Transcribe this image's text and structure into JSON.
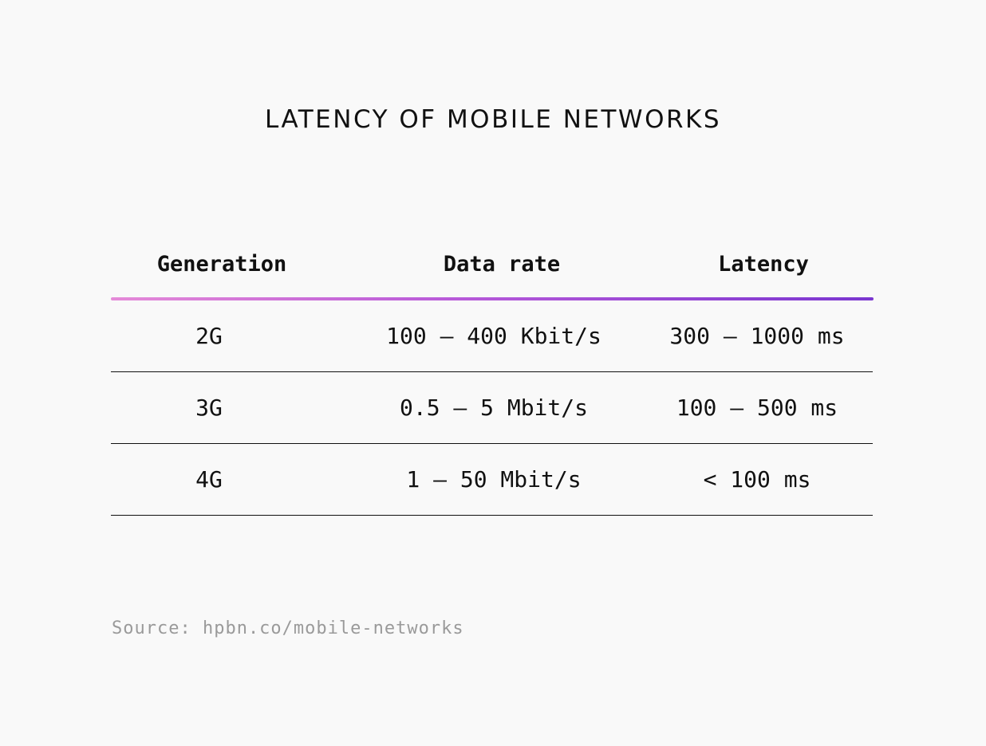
{
  "title": "LATENCY OF MOBILE NETWORKS",
  "table": {
    "headers": [
      "Generation",
      "Data rate",
      "Latency"
    ],
    "rows": [
      [
        "2G",
        "100 – 400 Kbit/s",
        "300 – 1000 ms"
      ],
      [
        "3G",
        "0.5 – 5 Mbit/s",
        "100 – 500 ms"
      ],
      [
        "4G",
        "1 – 50 Mbit/s",
        "< 100 ms"
      ]
    ]
  },
  "source": "Source: hpbn.co/mobile-networks",
  "colors": {
    "background": "#f9f9f9",
    "text": "#111111",
    "muted": "#9a9a9a",
    "gradient_start": "#e58ad8",
    "gradient_end": "#7a36d0"
  }
}
